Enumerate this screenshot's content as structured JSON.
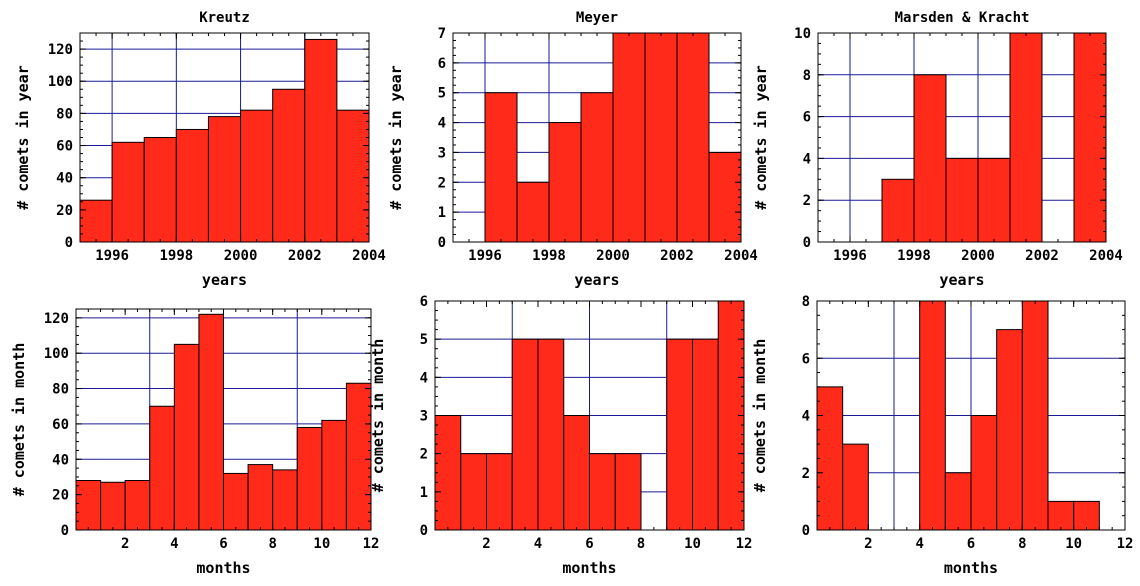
{
  "chart_data": [
    {
      "type": "bar",
      "title": "Kreutz",
      "xlabel": "years",
      "ylabel": "# comets in year",
      "xlim": [
        1995,
        2004
      ],
      "ylim": [
        0,
        130
      ],
      "bar_width": 1,
      "x": [
        1995,
        1996,
        1997,
        1998,
        1999,
        2000,
        2001,
        2002,
        2003
      ],
      "values": [
        26,
        62,
        65,
        70,
        78,
        82,
        95,
        126,
        82
      ],
      "xticks": [
        1996,
        1998,
        2000,
        2002,
        2004
      ],
      "yticks": [
        0,
        20,
        40,
        60,
        80,
        100,
        120
      ],
      "xgrid": [
        1996,
        1998,
        2000,
        2002,
        2004
      ],
      "ygrid": [
        20,
        40,
        60,
        80,
        100,
        120
      ],
      "grid": true,
      "bar_color": "#ff2a1a"
    },
    {
      "type": "bar",
      "title": "Meyer",
      "xlabel": "years",
      "ylabel": "# comets in year",
      "xlim": [
        1995,
        2004
      ],
      "ylim": [
        0,
        7
      ],
      "bar_width": 1,
      "x": [
        1995,
        1996,
        1997,
        1998,
        1999,
        2000,
        2001,
        2002,
        2003
      ],
      "values": [
        0,
        5,
        2,
        4,
        5,
        7,
        7,
        7,
        3
      ],
      "xticks": [
        1996,
        1998,
        2000,
        2002,
        2004
      ],
      "yticks": [
        0,
        1,
        2,
        3,
        4,
        5,
        6,
        7
      ],
      "xgrid": [
        1996,
        1998,
        2000,
        2002,
        2004
      ],
      "ygrid": [
        1,
        2,
        3,
        4,
        5,
        6,
        7
      ],
      "grid": true,
      "bar_color": "#ff2a1a"
    },
    {
      "type": "bar",
      "title": "Marsden & Kracht",
      "xlabel": "years",
      "ylabel": "# comets in year",
      "xlim": [
        1995,
        2004
      ],
      "ylim": [
        0,
        10
      ],
      "bar_width": 1,
      "x": [
        1995,
        1996,
        1997,
        1998,
        1999,
        2000,
        2001,
        2002,
        2003
      ],
      "values": [
        0,
        0,
        3,
        8,
        4,
        4,
        10,
        0,
        10
      ],
      "xticks": [
        1996,
        1998,
        2000,
        2002,
        2004
      ],
      "yticks": [
        0,
        2,
        4,
        6,
        8,
        10
      ],
      "xgrid": [
        1996,
        1998,
        2000,
        2002,
        2004
      ],
      "ygrid": [
        2,
        4,
        6,
        8,
        10
      ],
      "grid": true,
      "bar_color": "#ff2a1a"
    },
    {
      "type": "bar",
      "title": "",
      "xlabel": "months",
      "ylabel": "# comets in month",
      "xlim": [
        0,
        12
      ],
      "ylim": [
        0,
        125
      ],
      "bar_width": 1,
      "x": [
        0,
        1,
        2,
        3,
        4,
        5,
        6,
        7,
        8,
        9,
        10,
        11
      ],
      "values": [
        28,
        27,
        28,
        70,
        105,
        122,
        32,
        37,
        34,
        58,
        62,
        83
      ],
      "xticks": [
        2,
        4,
        6,
        8,
        10,
        12
      ],
      "yticks": [
        0,
        20,
        40,
        60,
        80,
        100,
        120
      ],
      "xgrid": [
        3,
        6,
        9
      ],
      "ygrid": [
        20,
        40,
        60,
        80,
        100,
        120
      ],
      "grid": true,
      "bar_color": "#ff2a1a"
    },
    {
      "type": "bar",
      "title": "",
      "xlabel": "months",
      "ylabel": "# comets in month",
      "xlim": [
        0,
        12
      ],
      "ylim": [
        0,
        6
      ],
      "bar_width": 1,
      "x": [
        0,
        1,
        2,
        3,
        4,
        5,
        6,
        7,
        8,
        9,
        10,
        11
      ],
      "values": [
        3,
        2,
        2,
        5,
        5,
        3,
        2,
        2,
        0,
        5,
        5,
        6
      ],
      "xticks": [
        2,
        4,
        6,
        8,
        10,
        12
      ],
      "yticks": [
        0,
        1,
        2,
        3,
        4,
        5,
        6
      ],
      "xgrid": [
        3,
        6,
        9
      ],
      "ygrid": [
        1,
        2,
        3,
        4,
        5,
        6
      ],
      "grid": true,
      "bar_color": "#ff2a1a"
    },
    {
      "type": "bar",
      "title": "",
      "xlabel": "months",
      "ylabel": "# comets in month",
      "xlim": [
        0,
        12
      ],
      "ylim": [
        0,
        8
      ],
      "bar_width": 1,
      "x": [
        0,
        1,
        2,
        3,
        4,
        5,
        6,
        7,
        8,
        9,
        10,
        11
      ],
      "values": [
        5,
        3,
        0,
        0,
        8,
        2,
        4,
        7,
        8,
        1,
        1,
        0
      ],
      "xticks": [
        2,
        4,
        6,
        8,
        10,
        12
      ],
      "yticks": [
        0,
        2,
        4,
        6,
        8
      ],
      "xgrid": [
        3,
        6,
        9
      ],
      "ygrid": [
        2,
        4,
        6,
        8
      ],
      "grid": true,
      "bar_color": "#ff2a1a"
    }
  ]
}
